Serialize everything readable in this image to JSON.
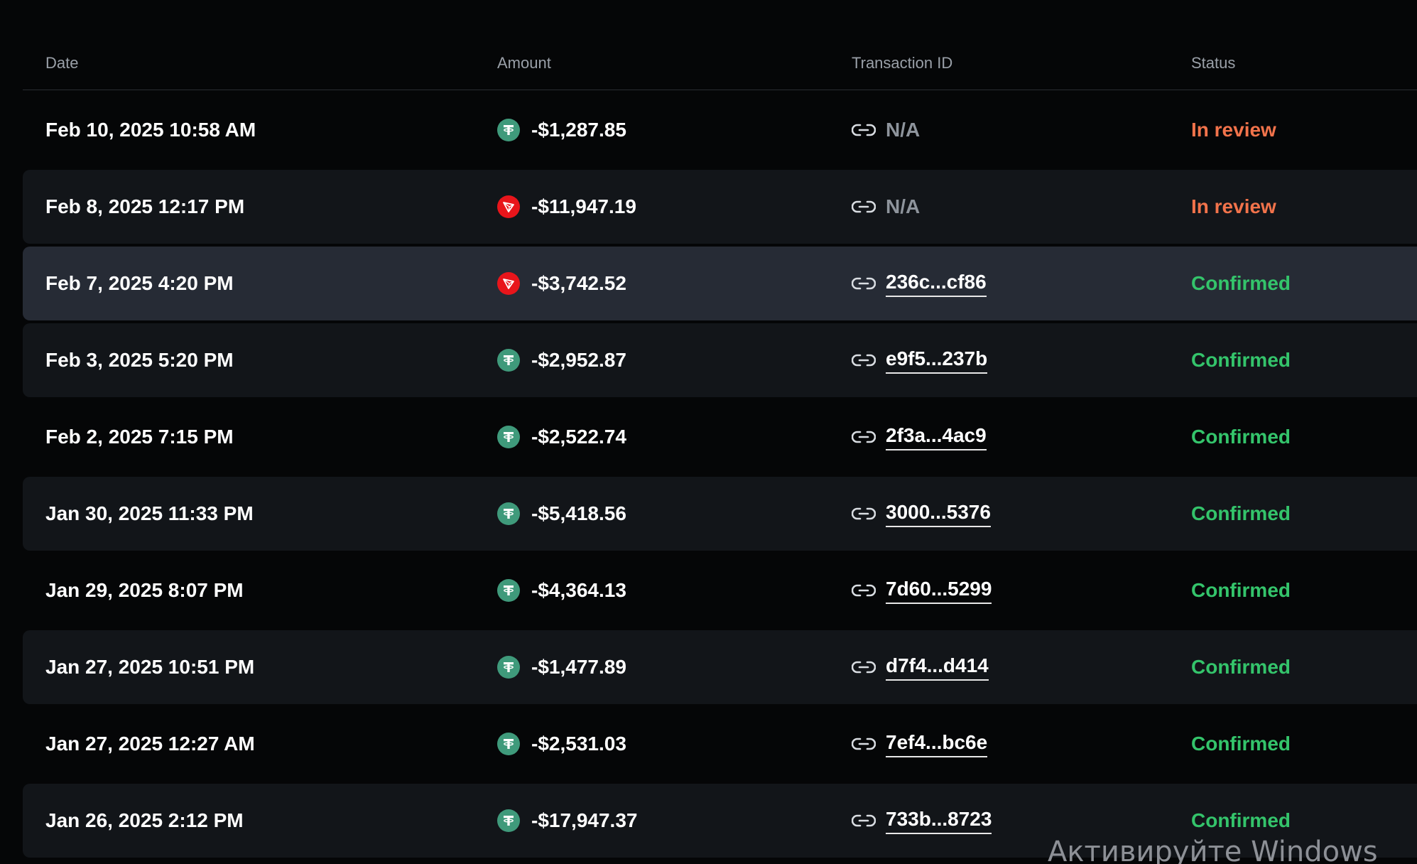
{
  "columns": {
    "date": "Date",
    "amount": "Amount",
    "transaction_id": "Transaction ID",
    "status": "Status"
  },
  "colors": {
    "tether": "#3f9a7b",
    "tron": "#e8151b",
    "in_review": "#f2734b",
    "confirmed": "#34c46b"
  },
  "rows": [
    {
      "date": "Feb 10, 2025 10:58 AM",
      "coin": "tether-icon",
      "amount": "-$1,287.85",
      "tx": "N/A",
      "status": "In review"
    },
    {
      "date": "Feb 8, 2025 12:17 PM",
      "coin": "tron-icon",
      "amount": "-$11,947.19",
      "tx": "N/A",
      "status": "In review"
    },
    {
      "date": "Feb 7, 2025 4:20 PM",
      "coin": "tron-icon",
      "amount": "-$3,742.52",
      "tx": "236c...cf86",
      "status": "Confirmed"
    },
    {
      "date": "Feb 3, 2025 5:20 PM",
      "coin": "tether-icon",
      "amount": "-$2,952.87",
      "tx": "e9f5...237b",
      "status": "Confirmed"
    },
    {
      "date": "Feb 2, 2025 7:15 PM",
      "coin": "tether-icon",
      "amount": "-$2,522.74",
      "tx": "2f3a...4ac9",
      "status": "Confirmed"
    },
    {
      "date": "Jan 30, 2025 11:33 PM",
      "coin": "tether-icon",
      "amount": "-$5,418.56",
      "tx": "3000...5376",
      "status": "Confirmed"
    },
    {
      "date": "Jan 29, 2025 8:07 PM",
      "coin": "tether-icon",
      "amount": "-$4,364.13",
      "tx": "7d60...5299",
      "status": "Confirmed"
    },
    {
      "date": "Jan 27, 2025 10:51 PM",
      "coin": "tether-icon",
      "amount": "-$1,477.89",
      "tx": "d7f4...d414",
      "status": "Confirmed"
    },
    {
      "date": "Jan 27, 2025 12:27 AM",
      "coin": "tether-icon",
      "amount": "-$2,531.03",
      "tx": "7ef4...bc6e",
      "status": "Confirmed"
    },
    {
      "date": "Jan 26, 2025 2:12 PM",
      "coin": "tether-icon",
      "amount": "-$17,947.37",
      "tx": "733b...8723",
      "status": "Confirmed"
    }
  ],
  "watermark": "Активируйте Windows"
}
